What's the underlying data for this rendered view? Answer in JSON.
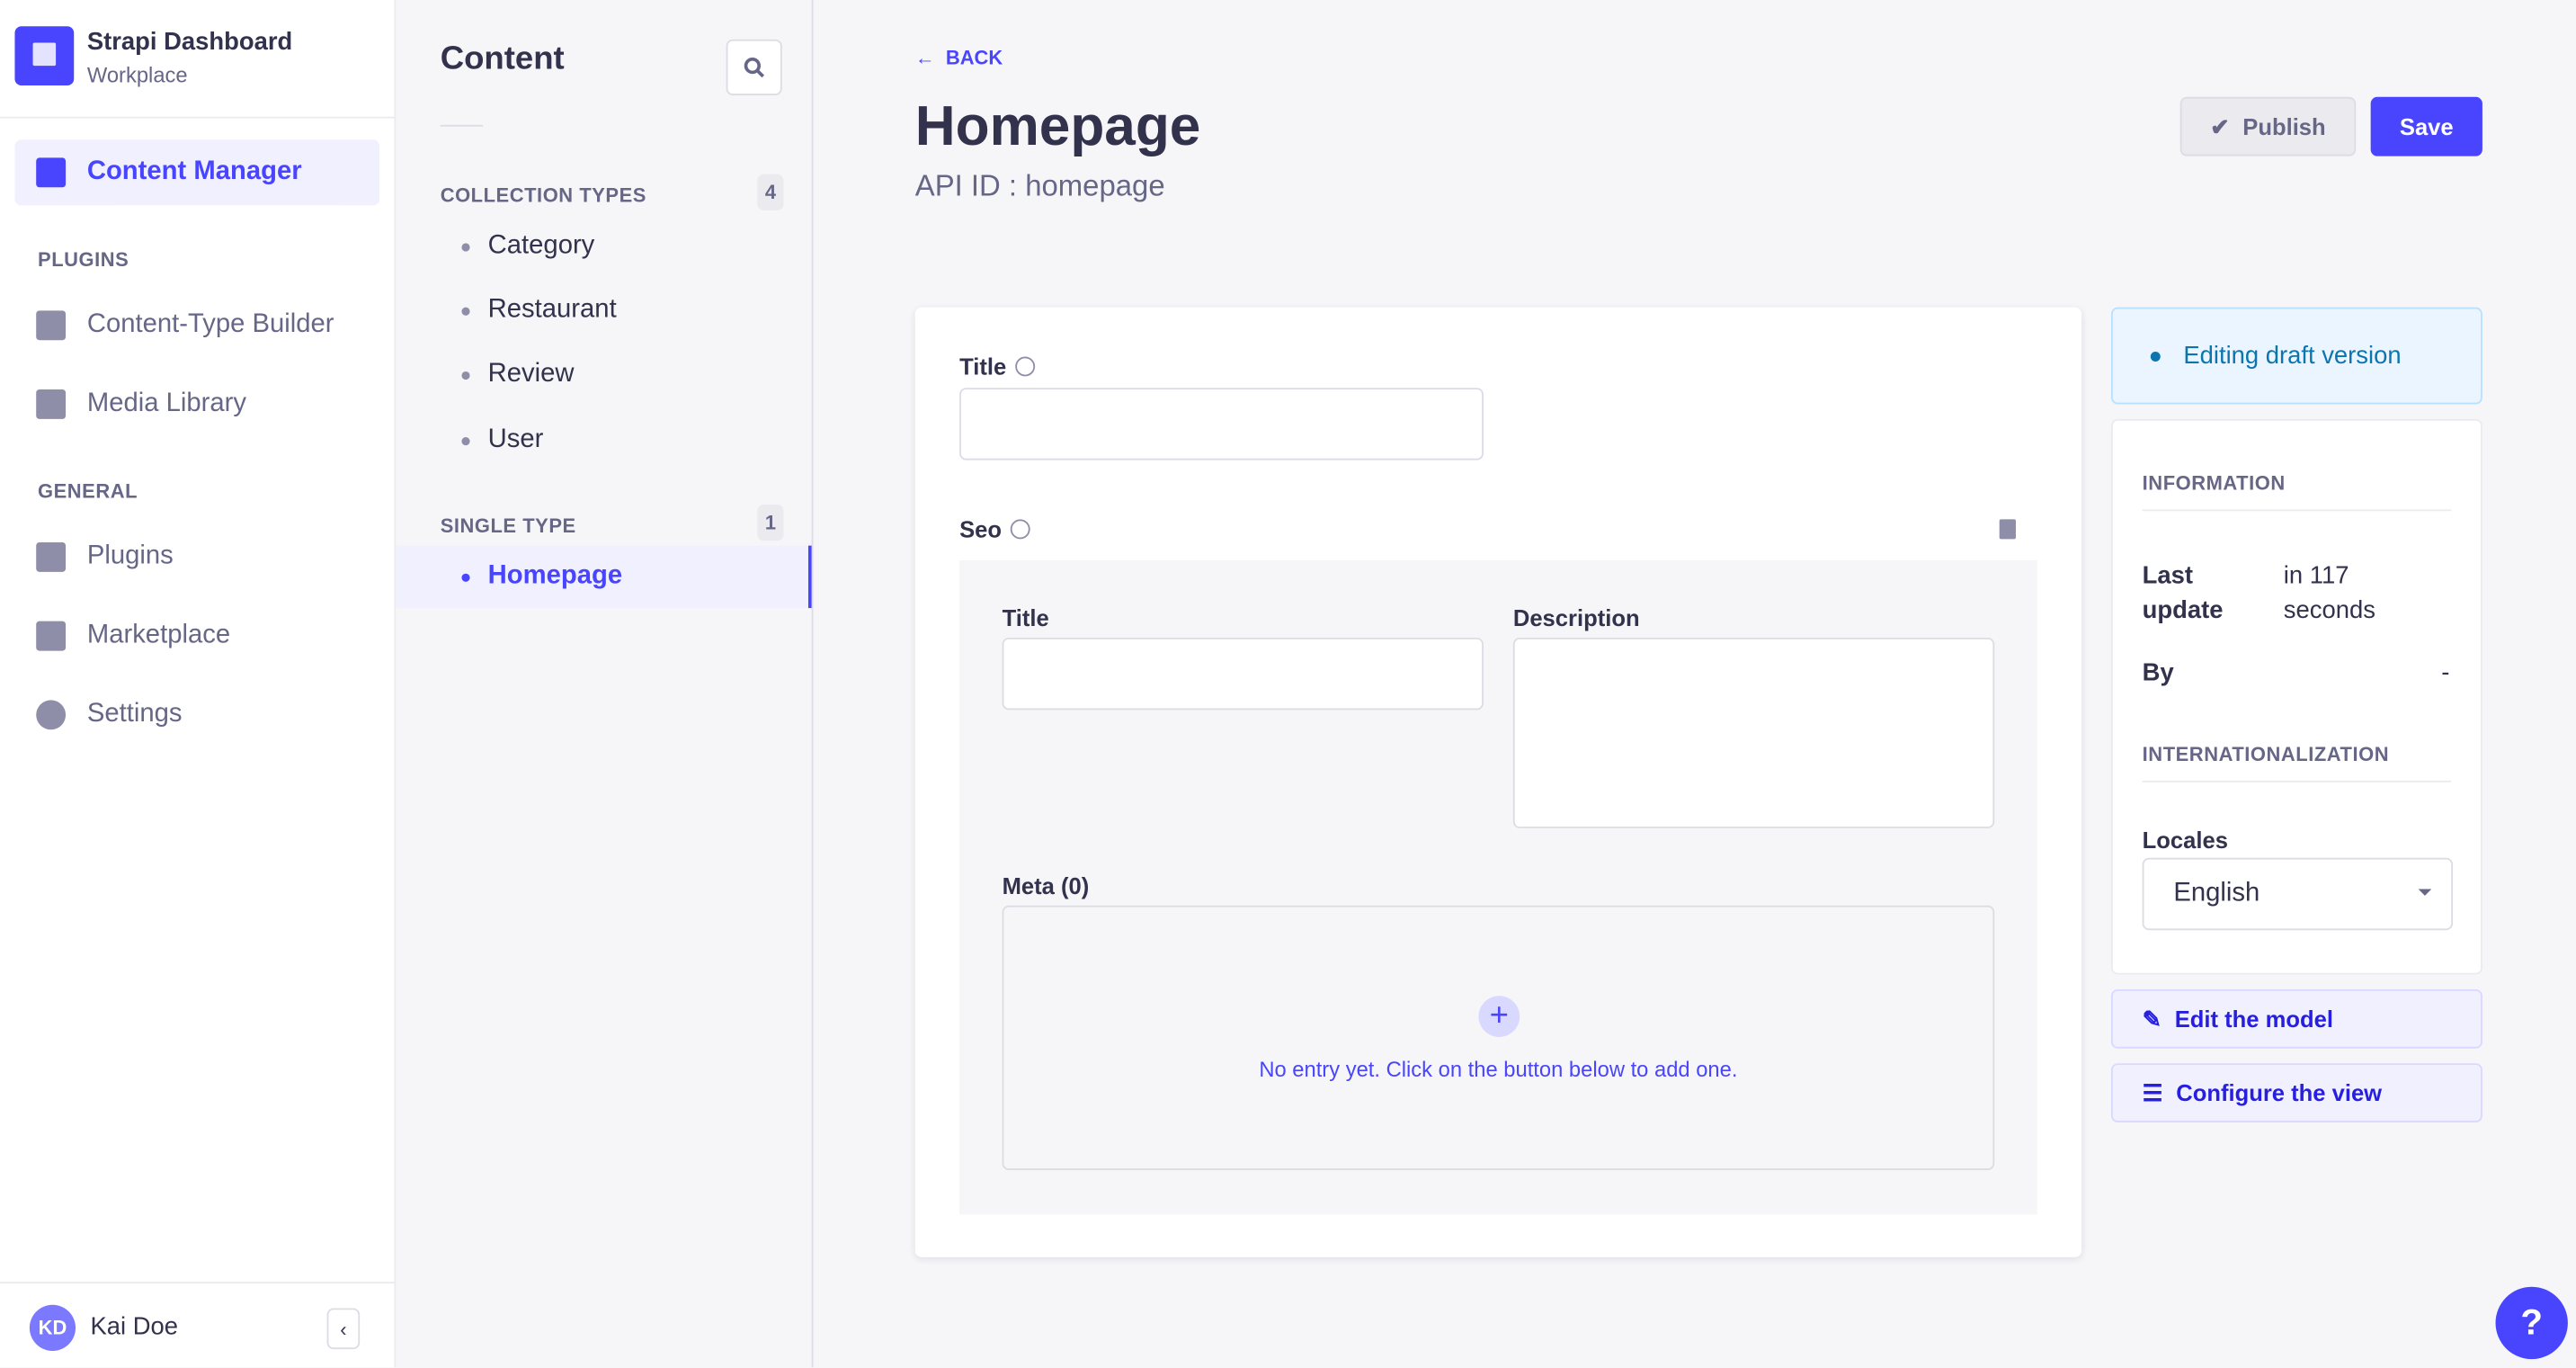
{
  "app": {
    "title": "Strapi Dashboard",
    "subtitle": "Workplace"
  },
  "sidebar": {
    "active": "Content Manager",
    "sections": [
      {
        "label": "PLUGINS"
      },
      {
        "label": "GENERAL"
      }
    ],
    "items": [
      {
        "label": "Content Manager",
        "icon": "feather-icon"
      },
      {
        "label": "Content-Type Builder",
        "icon": "layout-icon"
      },
      {
        "label": "Media Library",
        "icon": "image-icon"
      },
      {
        "label": "Plugins",
        "icon": "puzzle-icon"
      },
      {
        "label": "Marketplace",
        "icon": "cart-icon"
      },
      {
        "label": "Settings",
        "icon": "gear-icon"
      }
    ],
    "user": {
      "initials": "KD",
      "name": "Kai Doe"
    }
  },
  "content_panel": {
    "title": "Content",
    "collection_types": {
      "label": "COLLECTION TYPES",
      "count": "4",
      "items": [
        "Category",
        "Restaurant",
        "Review",
        "User"
      ]
    },
    "single_type": {
      "label": "SINGLE TYPE",
      "count": "1",
      "items": [
        "Homepage"
      ]
    }
  },
  "header": {
    "back": "BACK",
    "title": "Homepage",
    "api_id": "API ID : homepage",
    "publish": "Publish",
    "save": "Save"
  },
  "form": {
    "title_label": "Title",
    "title_value": "",
    "seo_label": "Seo",
    "seo": {
      "title_label": "Title",
      "title_value": "",
      "description_label": "Description",
      "description_value": "",
      "meta_label": "Meta (0)",
      "empty_text": "No entry yet. Click on the button below to add one."
    }
  },
  "right": {
    "draft": "Editing draft version",
    "information": "INFORMATION",
    "last_update_label": "Last update",
    "last_update_value": "in 117 seconds",
    "by_label": "By",
    "by_value": "-",
    "i18n": "INTERNATIONALIZATION",
    "locales_label": "Locales",
    "locale_value": "English",
    "edit_model": "Edit the model",
    "configure_view": "Configure the view"
  },
  "help": "?",
  "colors": {
    "primary": "#4945ff",
    "text": "#32324d",
    "muted": "#666687",
    "draft": "#0c75af"
  }
}
